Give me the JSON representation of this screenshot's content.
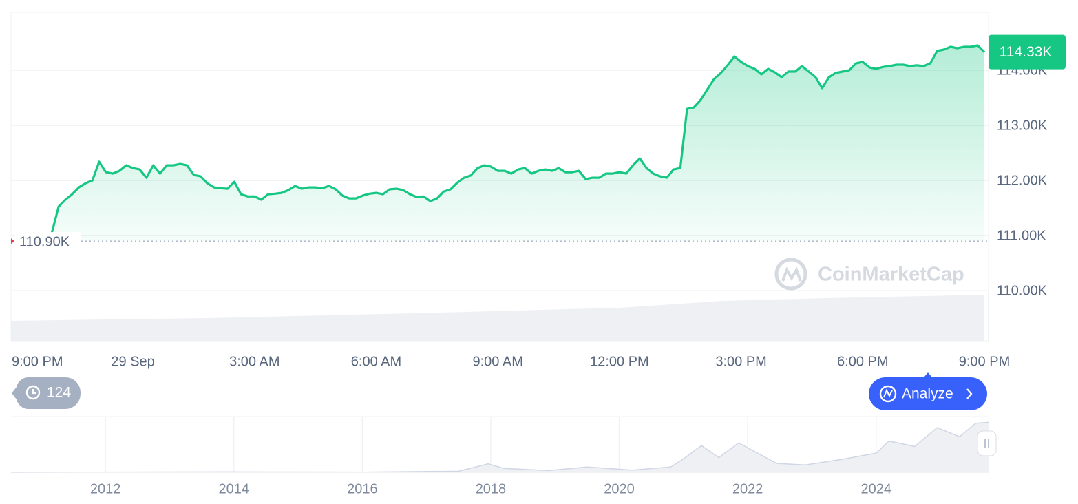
{
  "chart_data": [
    {
      "type": "line",
      "categories": [
        "9:00 PM",
        null,
        null,
        null,
        null,
        null,
        null,
        null,
        null,
        null,
        null,
        null,
        null,
        null,
        null,
        null,
        null,
        null,
        "29 Sep",
        null,
        null,
        null,
        null,
        null,
        null,
        null,
        null,
        null,
        null,
        null,
        null,
        null,
        null,
        null,
        null,
        null,
        "3:00 AM",
        null,
        null,
        null,
        null,
        null,
        null,
        null,
        null,
        null,
        null,
        null,
        null,
        null,
        null,
        null,
        null,
        null,
        "6:00 AM",
        null,
        null,
        null,
        null,
        null,
        null,
        null,
        null,
        null,
        null,
        null,
        null,
        null,
        null,
        null,
        null,
        null,
        "9:00 AM",
        null,
        null,
        null,
        null,
        null,
        null,
        null,
        null,
        null,
        null,
        null,
        null,
        null,
        null,
        null,
        null,
        null,
        "12:00 PM",
        null,
        null,
        null,
        null,
        null,
        null,
        null,
        null,
        null,
        null,
        null,
        null,
        null,
        null,
        null,
        null,
        null,
        "3:00 PM",
        null,
        null,
        null,
        null,
        null,
        null,
        null,
        null,
        null,
        null,
        null,
        null,
        null,
        null,
        null,
        null,
        null,
        "6:00 PM",
        null,
        null,
        null,
        null,
        null,
        null,
        null,
        null,
        null,
        null,
        null,
        null,
        null,
        null,
        null,
        null,
        null,
        "9:00 PM"
      ],
      "values": [
        null,
        null,
        null,
        null,
        null,
        null,
        111050,
        111525,
        111650,
        111750,
        111875,
        111950,
        112000,
        112340,
        112150,
        112125,
        112175,
        112275,
        112225,
        112200,
        112050,
        112275,
        112125,
        112275,
        112275,
        112300,
        112275,
        112100,
        112075,
        111950,
        111875,
        111860,
        111850,
        111975,
        111750,
        111710,
        111710,
        111650,
        111750,
        111760,
        111775,
        111825,
        111900,
        111850,
        111875,
        111875,
        111860,
        111900,
        111840,
        111725,
        111675,
        111675,
        111725,
        111760,
        111775,
        111750,
        111840,
        111850,
        111825,
        111750,
        111700,
        111710,
        111625,
        111675,
        111800,
        111840,
        111960,
        112050,
        112090,
        112225,
        112275,
        112250,
        112175,
        112175,
        112125,
        112200,
        112225,
        112125,
        112175,
        112200,
        112175,
        112225,
        112150,
        112150,
        112175,
        112025,
        112050,
        112050,
        112125,
        112125,
        112150,
        112125,
        112275,
        112400,
        112225,
        112125,
        112075,
        112050,
        112200,
        112225,
        113300,
        113325,
        113460,
        113650,
        113840,
        113950,
        114090,
        114250,
        114150,
        114075,
        114025,
        113925,
        114025,
        113960,
        113875,
        113975,
        113975,
        114075,
        113975,
        113875,
        113675,
        113875,
        113950,
        113975,
        114000,
        114125,
        114150,
        114050,
        114025,
        114060,
        114075,
        114100,
        114100,
        114075,
        114090,
        114075,
        114125,
        114350,
        114375,
        114425,
        114400,
        114425,
        114425,
        114450,
        114330
      ],
      "color": "#16c784",
      "ylim": [
        109090,
        115050
      ],
      "yticks": [
        {
          "value": 110000,
          "label": "110.00K"
        },
        {
          "value": 111000,
          "label": "111.00K"
        },
        {
          "value": 112000,
          "label": "112.00K"
        },
        {
          "value": 113000,
          "label": "113.00K"
        },
        {
          "value": 114000,
          "label": "114.00K"
        }
      ],
      "grid": true,
      "reference_line": {
        "value": 110900,
        "label": "110.90K"
      },
      "current_price": {
        "value": 114330,
        "label": "114.33K"
      }
    },
    {
      "type": "area",
      "x": [
        2010.53,
        2013.9,
        2016.0,
        2017.5,
        2017.96,
        2018.2,
        2018.9,
        2019.5,
        2020.2,
        2020.8,
        2021.0,
        2021.28,
        2021.55,
        2021.86,
        2022.45,
        2022.9,
        2023.5,
        2024.0,
        2024.2,
        2024.6,
        2024.95,
        2025.3,
        2025.55,
        2025.75
      ],
      "values": [
        0,
        1000,
        400,
        2500,
        19000,
        9000,
        4000,
        12000,
        5000,
        12000,
        30000,
        60000,
        33000,
        66000,
        20000,
        16500,
        30000,
        43000,
        70000,
        58000,
        100000,
        80000,
        110000,
        112000
      ],
      "color": "#cfd6e4",
      "xlim": [
        2010.53,
        2025.75
      ],
      "ylim": [
        0,
        125000
      ],
      "xticks": [
        2012,
        2014,
        2016,
        2018,
        2020,
        2022,
        2024
      ],
      "grid": true
    }
  ],
  "ui": {
    "history_count": 124,
    "analyze": "Analyze",
    "watermark": "CoinMarketCap"
  }
}
